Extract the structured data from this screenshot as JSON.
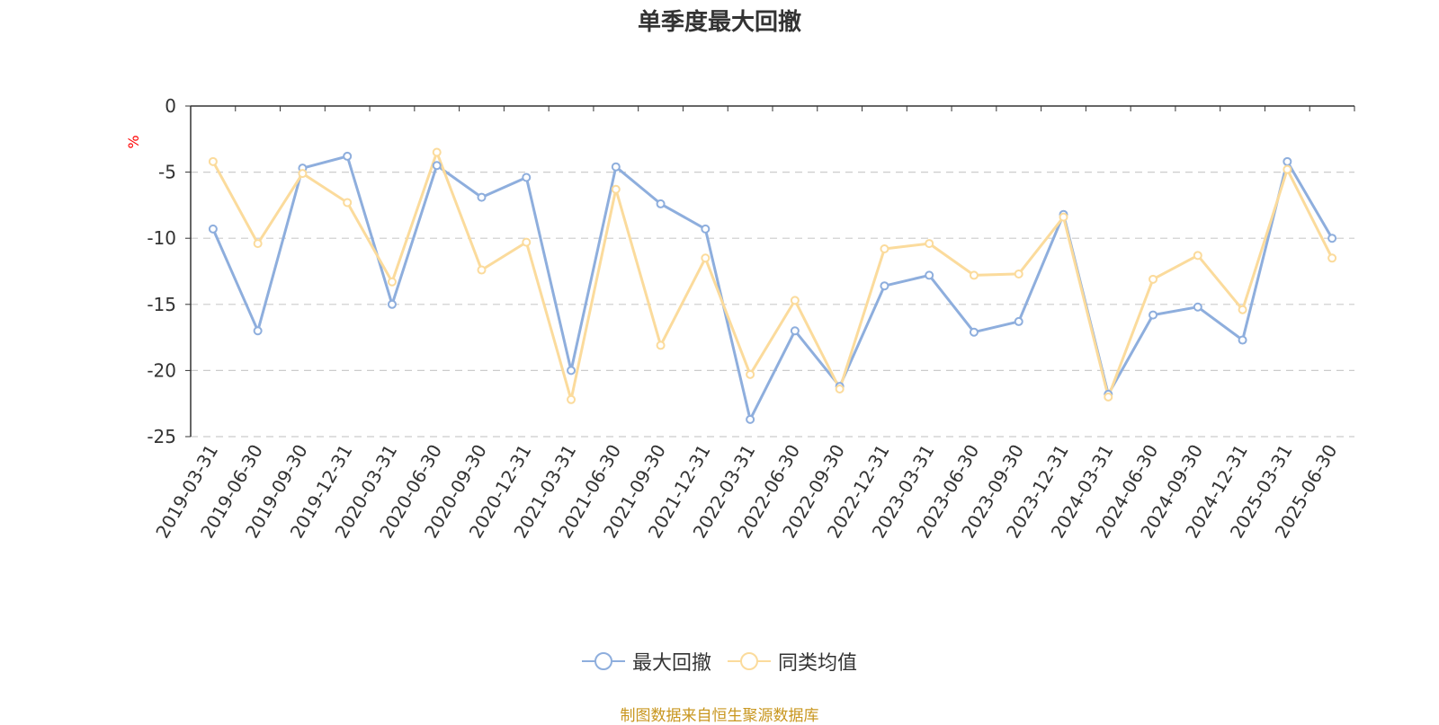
{
  "chart_data": {
    "type": "line",
    "title": "单季度最大回撤",
    "ylabel": "%",
    "ylim": [
      -25,
      0
    ],
    "yticks": [
      0,
      -5,
      -10,
      -15,
      -20,
      -25
    ],
    "grid": true,
    "legend_position": "bottom",
    "categories": [
      "2019-03-31",
      "2019-06-30",
      "2019-09-30",
      "2019-12-31",
      "2020-03-31",
      "2020-06-30",
      "2020-09-30",
      "2020-12-31",
      "2021-03-31",
      "2021-06-30",
      "2021-09-30",
      "2021-12-31",
      "2022-03-31",
      "2022-06-30",
      "2022-09-30",
      "2022-12-31",
      "2023-03-31",
      "2023-06-30",
      "2023-09-30",
      "2023-12-31",
      "2024-03-31",
      "2024-06-30",
      "2024-09-30",
      "2024-12-31",
      "2025-03-31",
      "2025-06-30"
    ],
    "series": [
      {
        "name": "最大回撤",
        "color": "#8eaedd",
        "values": [
          -9.3,
          -17.0,
          -4.7,
          -3.8,
          -15.0,
          -4.5,
          -6.9,
          -5.4,
          -20.0,
          -4.6,
          -7.4,
          -9.3,
          -23.7,
          -17.0,
          -21.2,
          -13.6,
          -12.8,
          -17.1,
          -16.3,
          -8.2,
          -21.8,
          -15.8,
          -15.2,
          -17.7,
          -4.2,
          -10.0
        ]
      },
      {
        "name": "同类均值",
        "color": "#fbdb9c",
        "values": [
          -4.2,
          -10.4,
          -5.1,
          -7.3,
          -13.3,
          -3.5,
          -12.4,
          -10.3,
          -22.2,
          -6.3,
          -18.1,
          -11.5,
          -20.3,
          -14.7,
          -21.4,
          -10.8,
          -10.4,
          -12.8,
          -12.7,
          -8.4,
          -22.0,
          -13.1,
          -11.3,
          -15.4,
          -4.8,
          -11.5
        ]
      }
    ]
  },
  "legend": {
    "items": [
      "最大回撤",
      "同类均值"
    ]
  },
  "footer": {
    "source": "制图数据来自恒生聚源数据库"
  },
  "colors": {
    "axis": "#333333",
    "grid": "#cccccc",
    "ylabel": "#ff0000",
    "source": "#c8961e"
  }
}
